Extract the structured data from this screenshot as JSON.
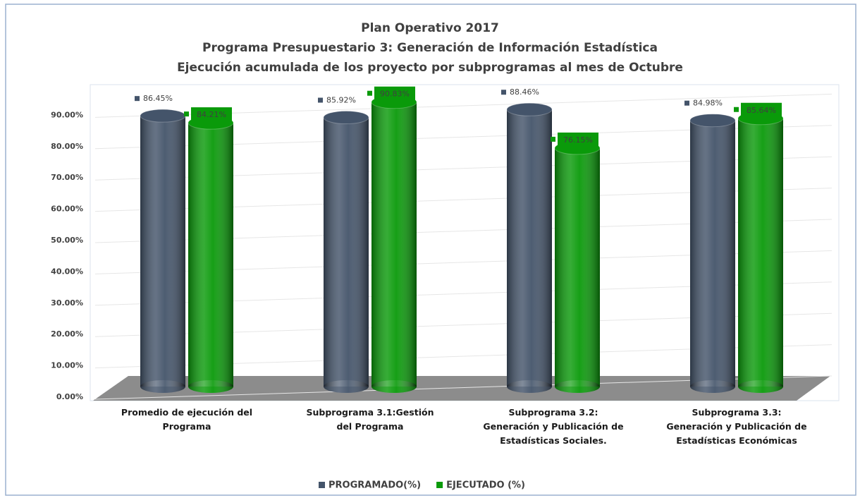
{
  "chart_data": {
    "type": "bar3d",
    "title": [
      "Plan Operativo 2017",
      "Programa Presupuestario 3: Generación de Información Estadística",
      "Ejecución acumulada de los proyecto por subprogramas al mes de Octubre"
    ],
    "categories": [
      "Promedio de ejecución del\nPrograma",
      "Subprograma 3.1:Gestión\ndel Programa",
      "Subprograma 3.2:\nGeneración y Publicación de\nEstadísticas Sociales.",
      "Subprograma 3.3:\nGeneración y Publicación de\nEstadísticas Económicas"
    ],
    "series": [
      {
        "name": "PROGRAMADO(%)",
        "color": "#44546a",
        "values": [
          86.45,
          85.92,
          88.46,
          84.98
        ],
        "value_labels": [
          "86.45%",
          "85.92%",
          "88.46%",
          "84.98%"
        ]
      },
      {
        "name": "EJECUTADO (%)",
        "color": "#0a9a0a",
        "values": [
          84.21,
          90.83,
          76.15,
          85.64
        ],
        "value_labels": [
          "84.21%",
          "90.83%",
          "76.15%",
          "85.64%"
        ]
      }
    ],
    "ylim": [
      0,
      95
    ],
    "yticks": [
      {
        "value": 0,
        "label": "0.00%"
      },
      {
        "value": 10,
        "label": "10.00%"
      },
      {
        "value": 20,
        "label": "20.00%"
      },
      {
        "value": 30,
        "label": "30.00%"
      },
      {
        "value": 40,
        "label": "40.00%"
      },
      {
        "value": 50,
        "label": "50.00%"
      },
      {
        "value": 60,
        "label": "60.00%"
      },
      {
        "value": 70,
        "label": "70.00%"
      },
      {
        "value": 80,
        "label": "80.00%"
      },
      {
        "value": 90,
        "label": "90.00%"
      }
    ],
    "grid": true,
    "legend": "bottom"
  }
}
